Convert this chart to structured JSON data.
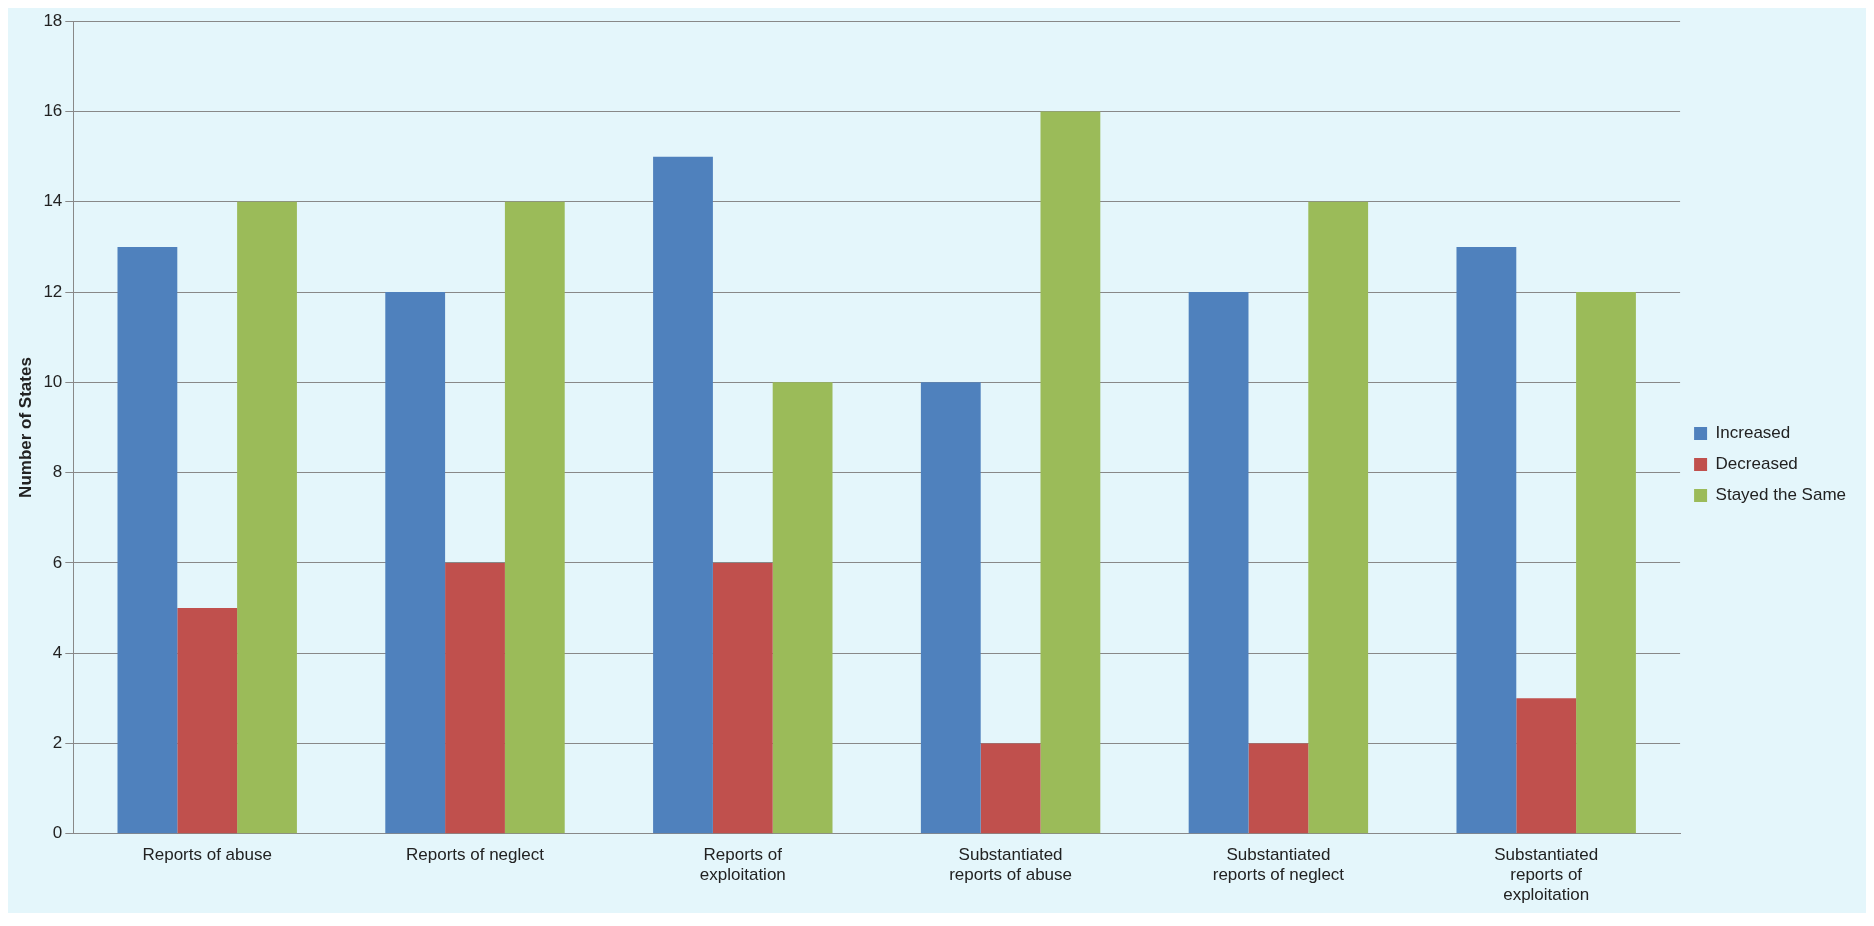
{
  "chart_data": {
    "type": "bar",
    "ylabel": "Number of States",
    "categories": [
      "Reports of abuse",
      "Reports of neglect",
      "Reports of exploitation",
      "Substantiated reports of abuse",
      "Substantiated reports of neglect",
      "Substantiated reports of exploitation"
    ],
    "series": [
      {
        "name": "Increased",
        "color": "#4f81bd",
        "values": [
          13,
          12,
          15,
          10,
          12,
          13
        ]
      },
      {
        "name": "Decreased",
        "color": "#c0504d",
        "values": [
          5,
          6,
          6,
          2,
          2,
          3
        ]
      },
      {
        "name": "Stayed the Same",
        "color": "#9bbb59",
        "values": [
          14,
          14,
          10,
          16,
          14,
          12
        ]
      }
    ],
    "ylim": [
      0,
      18
    ],
    "yticks": [
      0,
      2,
      4,
      6,
      8,
      10,
      12,
      14,
      16,
      18
    ],
    "grid": "y",
    "legend": "right"
  }
}
